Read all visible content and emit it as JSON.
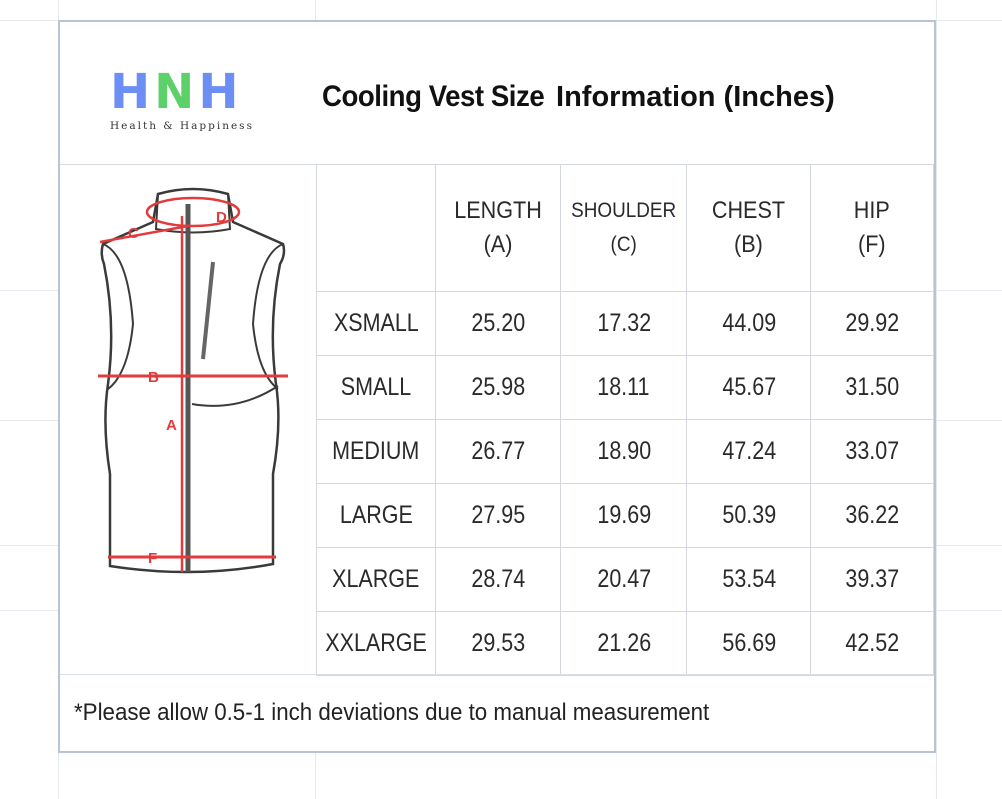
{
  "brand": {
    "logo_text": "HNH",
    "logo_h1": "H",
    "logo_n": "N",
    "logo_h2": "H",
    "tagline": "Health & Happiness",
    "color_h": "#6c8ef5",
    "color_n": "#5cd16a"
  },
  "title": {
    "part1": "Cooling Vest Size",
    "part2": "Information (Inches)"
  },
  "diagram": {
    "labels": [
      "C",
      "D",
      "B",
      "A",
      "F"
    ],
    "accent_color": "#e23b3b"
  },
  "table": {
    "columns": [
      {
        "name": "LENGTH",
        "code": "(A)"
      },
      {
        "name": "SHOULDER",
        "code": "(C)"
      },
      {
        "name": "CHEST",
        "code": "(B)"
      },
      {
        "name": "HIP",
        "code": "(F)"
      }
    ],
    "rows": [
      {
        "size": "XSMALL",
        "values": [
          "25.20",
          "17.32",
          "44.09",
          "29.92"
        ]
      },
      {
        "size": "SMALL",
        "values": [
          "25.98",
          "18.11",
          "45.67",
          "31.50"
        ]
      },
      {
        "size": "MEDIUM",
        "values": [
          "26.77",
          "18.90",
          "47.24",
          "33.07"
        ]
      },
      {
        "size": "LARGE",
        "values": [
          "27.95",
          "19.69",
          "50.39",
          "36.22"
        ]
      },
      {
        "size": "XLARGE",
        "values": [
          "28.74",
          "20.47",
          "53.54",
          "39.37"
        ]
      },
      {
        "size": "XXLARGE",
        "values": [
          "29.53",
          "21.26",
          "56.69",
          "42.52"
        ]
      }
    ]
  },
  "footer": {
    "note": "*Please allow 0.5-1 inch deviations due to manual measurement"
  }
}
